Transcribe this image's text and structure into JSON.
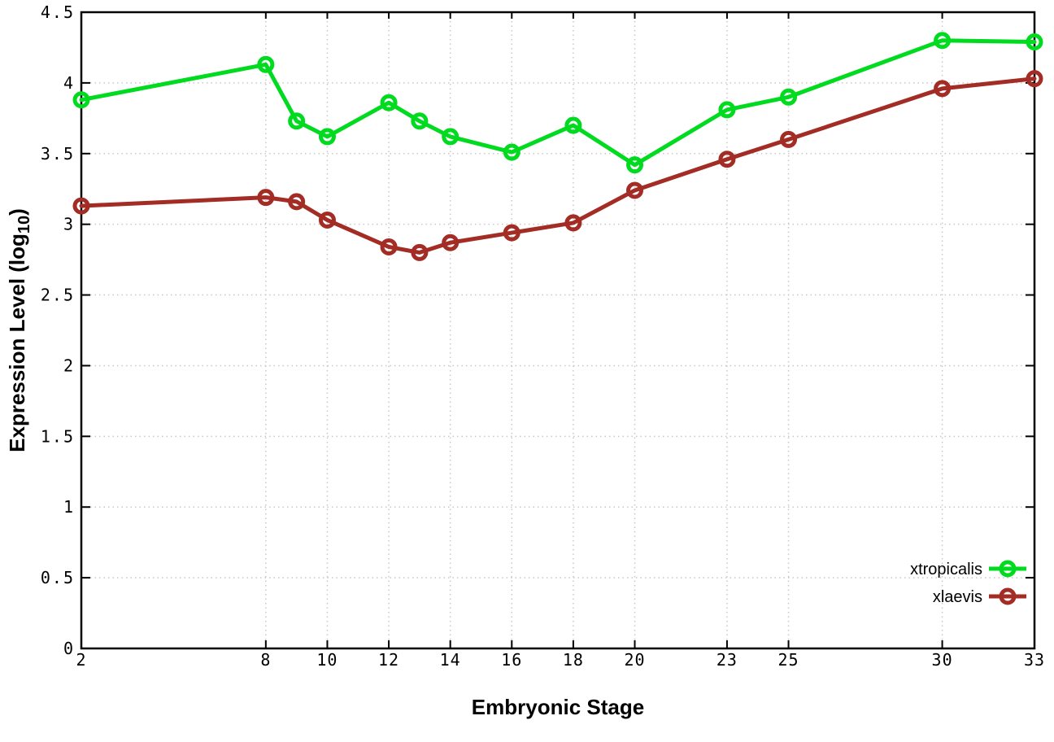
{
  "chart_data": {
    "type": "line",
    "title": "",
    "xlabel": "Embryonic Stage",
    "ylabel_prefix": "Expression Level (log",
    "ylabel_subscript": "10",
    "ylabel_suffix": ")",
    "xlim": [
      2,
      33
    ],
    "ylim": [
      0,
      4.5
    ],
    "grid": true,
    "legend_position": "bottom-right",
    "xticks": [
      2,
      8,
      10,
      12,
      14,
      16,
      18,
      20,
      23,
      25,
      30,
      33
    ],
    "yticks": [
      0,
      0.5,
      1,
      1.5,
      2,
      2.5,
      3,
      3.5,
      4,
      4.5
    ],
    "x": [
      2,
      8,
      9,
      10,
      12,
      13,
      14,
      16,
      18,
      20,
      23,
      25,
      30,
      33
    ],
    "series": [
      {
        "name": "xtropicalis",
        "color": "#00da1f",
        "values": [
          3.88,
          4.13,
          3.73,
          3.62,
          3.86,
          3.73,
          3.62,
          3.51,
          3.7,
          3.42,
          3.81,
          3.9,
          4.3,
          4.29
        ]
      },
      {
        "name": "xlaevis",
        "color": "#a32c25",
        "values": [
          3.13,
          3.19,
          3.16,
          3.03,
          2.84,
          2.8,
          2.87,
          2.94,
          3.01,
          3.24,
          3.46,
          3.6,
          3.96,
          4.03
        ]
      }
    ],
    "colors": {
      "grid": "#c8c8c8",
      "axis": "#000000",
      "background": "#ffffff"
    }
  }
}
